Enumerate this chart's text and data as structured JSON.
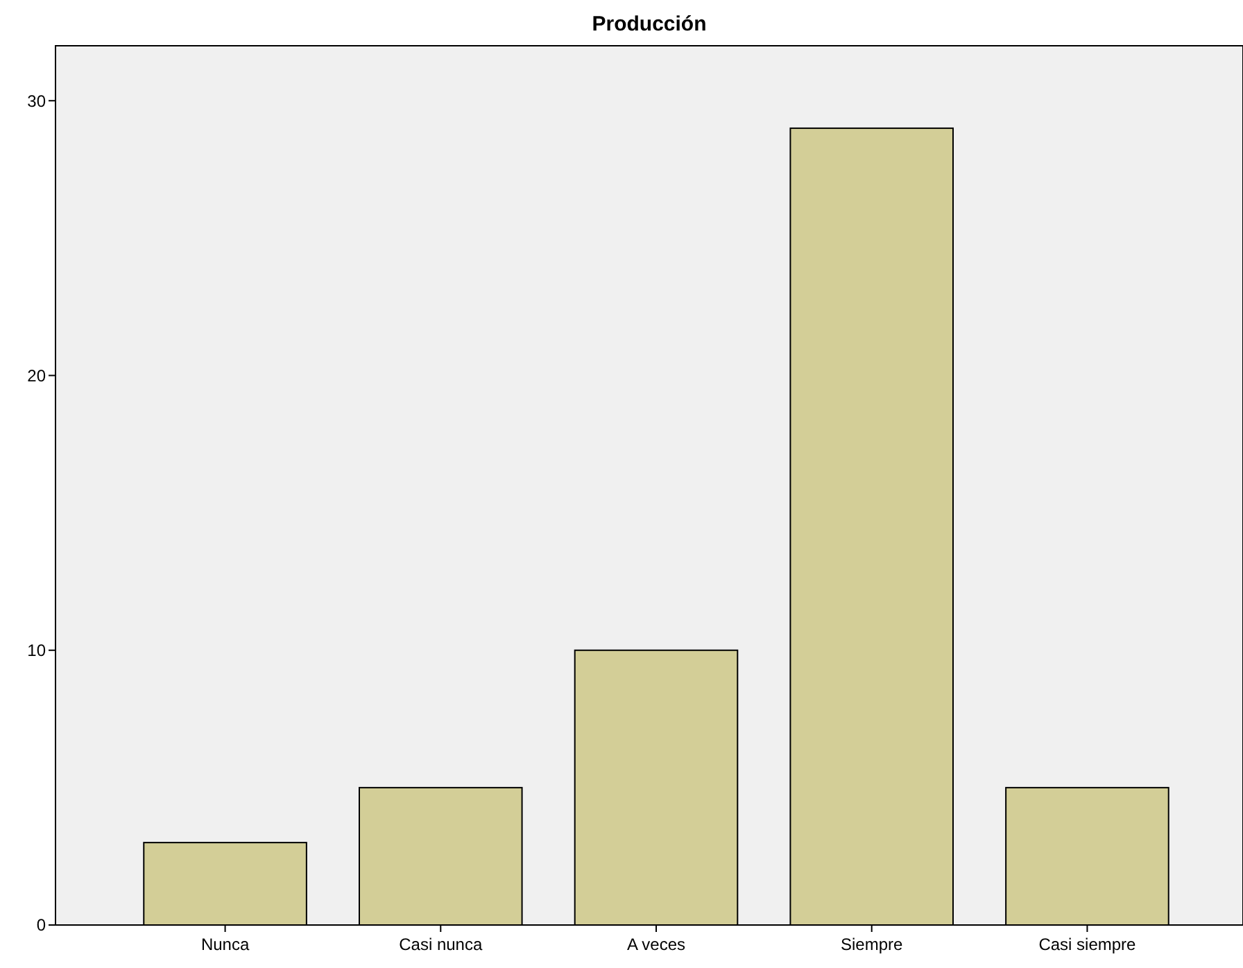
{
  "chart_data": {
    "type": "bar",
    "title": "Producción",
    "categories": [
      "Nunca",
      "Casi nunca",
      "A veces",
      "Siempre",
      "Casi siempre"
    ],
    "values": [
      3,
      5,
      10,
      29,
      5
    ],
    "color": "#d3ce97",
    "ylim": [
      0,
      32
    ],
    "yticks": [
      0,
      10,
      20,
      30
    ]
  }
}
